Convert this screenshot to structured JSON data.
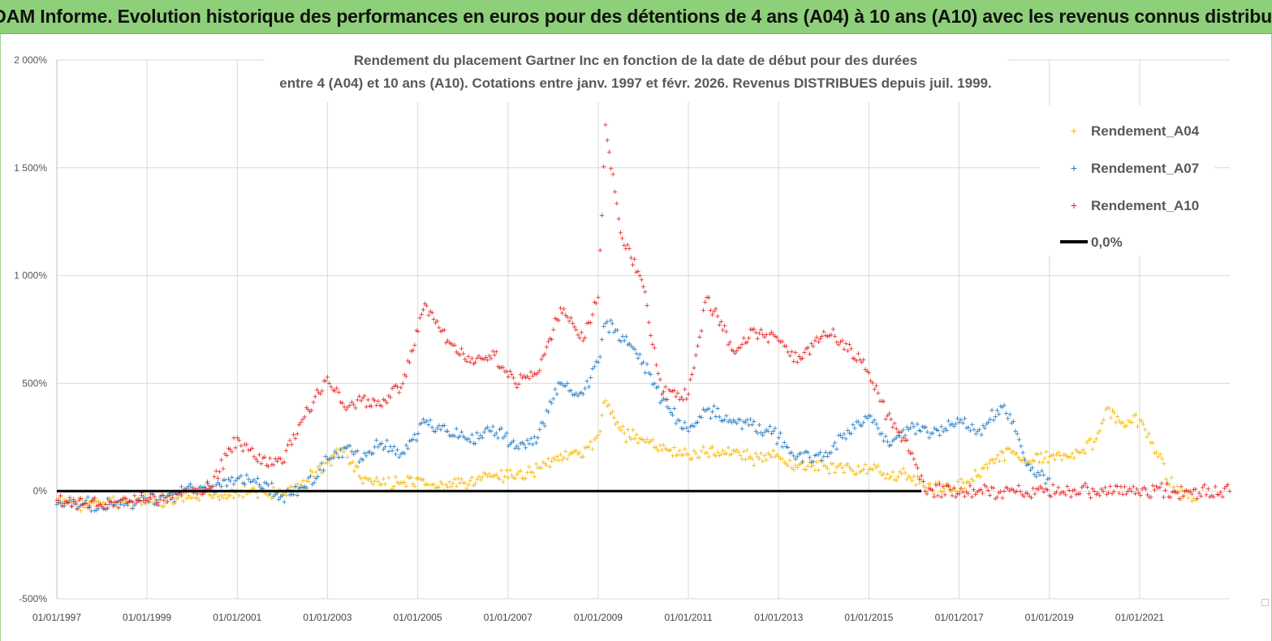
{
  "banner": {
    "title": "ADAM Informe. Evolution historique des performances en euros pour des détentions de 4 ans (A04) à 10 ans (A10) avec les revenus connus distribués"
  },
  "colors": {
    "banner_bg": "#8ed07a",
    "A04": "#f5b800",
    "A07": "#1f78c1",
    "A10": "#e81c1c",
    "zero": "#000000",
    "grid": "#d9d9d9"
  },
  "chart_data": {
    "type": "scatter",
    "title_lines": [
      "Rendement du placement Gartner Inc en fonction de la date de début pour des durées",
      "entre 4 (A04) et 10 ans (A10). Cotations entre janv. 1997 et févr. 2026. Revenus DISTRIBUES depuis juil. 1999."
    ],
    "x_range": [
      "1997-01-01",
      "2023-01-01"
    ],
    "ylim": [
      -500,
      2000
    ],
    "y_ticks": [
      {
        "value": 2000,
        "label": "2 000%"
      },
      {
        "value": 1500,
        "label": "1 500%"
      },
      {
        "value": 1000,
        "label": "1 000%"
      },
      {
        "value": 500,
        "label": "500%"
      },
      {
        "value": 0,
        "label": "0%"
      },
      {
        "value": -500,
        "label": "-500%"
      }
    ],
    "x_ticks": [
      {
        "date": "1997-01-01",
        "label": "01/01/1997"
      },
      {
        "date": "1999-01-01",
        "label": "01/01/1999"
      },
      {
        "date": "2001-01-01",
        "label": "01/01/2001"
      },
      {
        "date": "2003-01-01",
        "label": "01/01/2003"
      },
      {
        "date": "2005-01-01",
        "label": "01/01/2005"
      },
      {
        "date": "2007-01-01",
        "label": "01/01/2007"
      },
      {
        "date": "2009-01-01",
        "label": "01/01/2009"
      },
      {
        "date": "2011-01-01",
        "label": "01/01/2011"
      },
      {
        "date": "2013-01-01",
        "label": "01/01/2013"
      },
      {
        "date": "2015-01-01",
        "label": "01/01/2015"
      },
      {
        "date": "2017-01-01",
        "label": "01/01/2017"
      },
      {
        "date": "2019-01-01",
        "label": "01/01/2019"
      },
      {
        "date": "2021-01-01",
        "label": "01/01/2021"
      }
    ],
    "grid": true,
    "legend_position": "top-right",
    "series": [
      {
        "name": "Rendement_A04",
        "color_key": "A04",
        "marker": "+",
        "points": [
          [
            "1997-01-01",
            -50
          ],
          [
            "1997-06-01",
            -55
          ],
          [
            "1998-01-01",
            -60
          ],
          [
            "1998-06-01",
            -50
          ],
          [
            "1999-01-01",
            -45
          ],
          [
            "1999-06-01",
            -55
          ],
          [
            "2000-01-01",
            -30
          ],
          [
            "2000-06-01",
            -20
          ],
          [
            "2001-01-01",
            0
          ],
          [
            "2001-06-01",
            -5
          ],
          [
            "2002-01-01",
            -15
          ],
          [
            "2002-06-01",
            30
          ],
          [
            "2002-10-01",
            90
          ],
          [
            "2003-01-01",
            130
          ],
          [
            "2003-05-01",
            200
          ],
          [
            "2003-10-01",
            60
          ],
          [
            "2004-03-01",
            30
          ],
          [
            "2004-09-01",
            40
          ],
          [
            "2005-03-01",
            30
          ],
          [
            "2005-09-01",
            20
          ],
          [
            "2006-03-01",
            50
          ],
          [
            "2006-09-01",
            70
          ],
          [
            "2007-03-01",
            60
          ],
          [
            "2007-09-01",
            110
          ],
          [
            "2008-03-01",
            170
          ],
          [
            "2008-09-01",
            160
          ],
          [
            "2009-01-01",
            260
          ],
          [
            "2009-03-01",
            420
          ],
          [
            "2009-08-01",
            270
          ],
          [
            "2010-01-01",
            240
          ],
          [
            "2010-06-01",
            190
          ],
          [
            "2011-01-01",
            170
          ],
          [
            "2011-06-01",
            180
          ],
          [
            "2012-01-01",
            190
          ],
          [
            "2012-06-01",
            150
          ],
          [
            "2013-01-01",
            160
          ],
          [
            "2013-06-01",
            110
          ],
          [
            "2014-01-01",
            120
          ],
          [
            "2014-06-01",
            110
          ],
          [
            "2015-01-01",
            100
          ],
          [
            "2015-06-01",
            80
          ],
          [
            "2016-01-01",
            70
          ],
          [
            "2016-04-01",
            20
          ],
          [
            "2016-09-01",
            10
          ],
          [
            "2017-03-01",
            40
          ],
          [
            "2017-09-01",
            130
          ],
          [
            "2018-03-01",
            180
          ],
          [
            "2018-09-01",
            140
          ],
          [
            "2019-03-01",
            170
          ],
          [
            "2019-09-01",
            180
          ],
          [
            "2020-01-01",
            230
          ],
          [
            "2020-04-01",
            380
          ],
          [
            "2020-09-01",
            300
          ],
          [
            "2021-01-01",
            330
          ],
          [
            "2021-06-01",
            160
          ],
          [
            "2021-10-01",
            20
          ],
          [
            "2022-01-01",
            -20
          ],
          [
            "2022-04-01",
            -40
          ]
        ]
      },
      {
        "name": "Rendement_A07",
        "color_key": "A07",
        "marker": "+",
        "points": [
          [
            "1997-01-01",
            -60
          ],
          [
            "1997-06-01",
            -60
          ],
          [
            "1998-01-01",
            -70
          ],
          [
            "1998-06-01",
            -60
          ],
          [
            "1999-01-01",
            -40
          ],
          [
            "1999-06-01",
            -30
          ],
          [
            "2000-01-01",
            20
          ],
          [
            "2000-06-01",
            10
          ],
          [
            "2001-01-01",
            60
          ],
          [
            "2001-06-01",
            40
          ],
          [
            "2002-01-01",
            -20
          ],
          [
            "2002-06-01",
            20
          ],
          [
            "2002-10-01",
            60
          ],
          [
            "2003-01-01",
            150
          ],
          [
            "2003-06-01",
            200
          ],
          [
            "2003-10-01",
            150
          ],
          [
            "2004-03-01",
            220
          ],
          [
            "2004-09-01",
            180
          ],
          [
            "2005-03-01",
            320
          ],
          [
            "2005-09-01",
            280
          ],
          [
            "2006-03-01",
            230
          ],
          [
            "2006-09-01",
            300
          ],
          [
            "2007-03-01",
            200
          ],
          [
            "2007-09-01",
            250
          ],
          [
            "2008-03-01",
            500
          ],
          [
            "2008-09-01",
            450
          ],
          [
            "2009-01-01",
            600
          ],
          [
            "2009-03-01",
            780
          ],
          [
            "2009-08-01",
            700
          ],
          [
            "2010-01-01",
            600
          ],
          [
            "2010-06-01",
            420
          ],
          [
            "2011-01-01",
            280
          ],
          [
            "2011-06-01",
            380
          ],
          [
            "2012-01-01",
            330
          ],
          [
            "2012-06-01",
            310
          ],
          [
            "2013-01-01",
            250
          ],
          [
            "2013-06-01",
            160
          ],
          [
            "2014-01-01",
            160
          ],
          [
            "2014-06-01",
            250
          ],
          [
            "2015-01-01",
            350
          ],
          [
            "2015-06-01",
            230
          ],
          [
            "2016-01-01",
            300
          ],
          [
            "2016-06-01",
            270
          ],
          [
            "2017-01-01",
            320
          ],
          [
            "2017-06-01",
            280
          ],
          [
            "2018-01-01",
            400
          ],
          [
            "2018-06-01",
            180
          ],
          [
            "2018-09-01",
            80
          ],
          [
            "2019-01-01",
            60
          ]
        ]
      },
      {
        "name": "Rendement_A10",
        "color_key": "A10",
        "marker": "+",
        "points": [
          [
            "1997-01-01",
            -40
          ],
          [
            "1997-06-01",
            -50
          ],
          [
            "1998-01-01",
            -70
          ],
          [
            "1998-06-01",
            -40
          ],
          [
            "1999-01-01",
            -40
          ],
          [
            "1999-06-01",
            -30
          ],
          [
            "2000-01-01",
            0
          ],
          [
            "2000-06-01",
            20
          ],
          [
            "2001-01-01",
            250
          ],
          [
            "2001-06-01",
            150
          ],
          [
            "2002-01-01",
            130
          ],
          [
            "2002-06-01",
            320
          ],
          [
            "2003-01-01",
            530
          ],
          [
            "2003-06-01",
            380
          ],
          [
            "2003-10-01",
            420
          ],
          [
            "2004-03-01",
            400
          ],
          [
            "2004-09-01",
            500
          ],
          [
            "2005-03-01",
            870
          ],
          [
            "2005-09-01",
            700
          ],
          [
            "2006-03-01",
            600
          ],
          [
            "2006-09-01",
            650
          ],
          [
            "2007-03-01",
            500
          ],
          [
            "2007-09-01",
            550
          ],
          [
            "2008-03-01",
            850
          ],
          [
            "2008-09-01",
            700
          ],
          [
            "2009-01-01",
            900
          ],
          [
            "2009-03-01",
            1700
          ],
          [
            "2009-07-01",
            1200
          ],
          [
            "2010-01-01",
            950
          ],
          [
            "2010-06-01",
            450
          ],
          [
            "2011-01-01",
            450
          ],
          [
            "2011-06-01",
            900
          ],
          [
            "2012-01-01",
            650
          ],
          [
            "2012-06-01",
            750
          ],
          [
            "2013-01-01",
            700
          ],
          [
            "2013-06-01",
            600
          ],
          [
            "2014-01-01",
            740
          ],
          [
            "2014-06-01",
            700
          ],
          [
            "2015-01-01",
            550
          ],
          [
            "2015-06-01",
            350
          ],
          [
            "2016-01-01",
            150
          ],
          [
            "2016-04-01",
            0
          ],
          [
            "2018-01-01",
            0
          ],
          [
            "2020-01-01",
            0
          ],
          [
            "2022-01-01",
            0
          ],
          [
            "2023-01-01",
            0
          ]
        ]
      }
    ],
    "legend": [
      {
        "label": "Rendement_A04",
        "color_key": "A04",
        "marker": "+"
      },
      {
        "label": "Rendement_A07",
        "color_key": "A07",
        "marker": "+"
      },
      {
        "label": "Rendement_A10",
        "color_key": "A10",
        "marker": "+"
      },
      {
        "label": "0,0%",
        "color_key": "zero",
        "marker": "line"
      }
    ],
    "reference_line": {
      "y": 0,
      "label": "0,0%"
    }
  }
}
